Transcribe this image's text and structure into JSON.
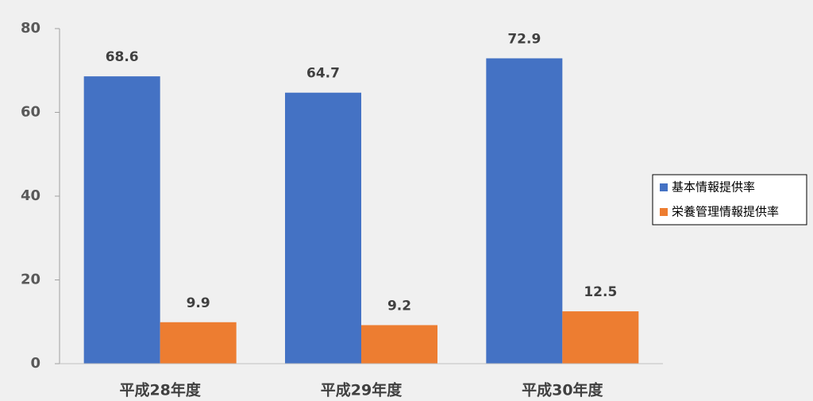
{
  "chart_data": {
    "type": "bar",
    "categories": [
      "平成28年度",
      "平成29年度",
      "平成30年度"
    ],
    "series": [
      {
        "name": "基本情報提供率",
        "color": "#4472c4",
        "values": [
          68.6,
          64.7,
          72.9
        ]
      },
      {
        "name": "栄養管理情報提供率",
        "color": "#ed7d31",
        "values": [
          9.9,
          9.2,
          12.5
        ]
      }
    ],
    "ylim": [
      0,
      80
    ],
    "yticks": [
      0,
      20,
      40,
      60,
      80
    ],
    "grid": false,
    "legend": "right"
  }
}
